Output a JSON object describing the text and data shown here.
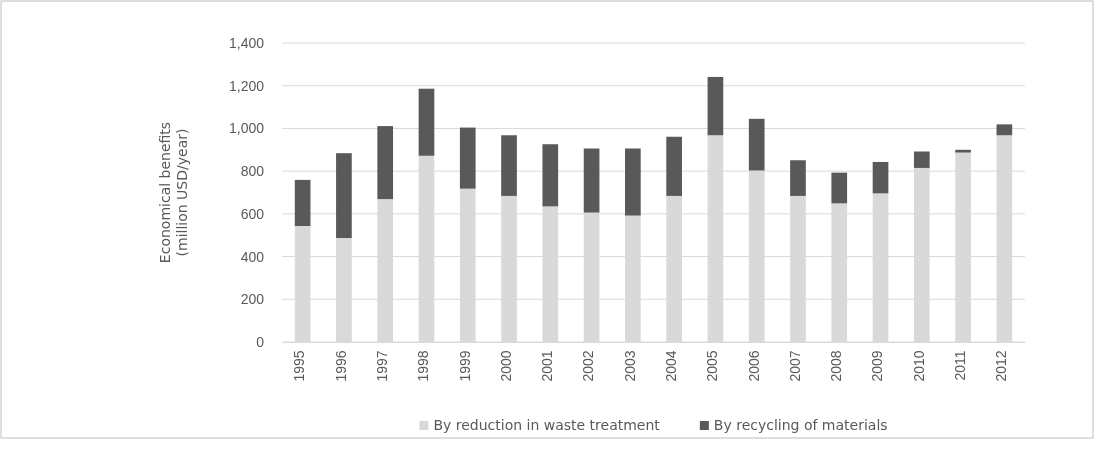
{
  "chart_data": {
    "type": "bar",
    "stacked": true,
    "ylabel": "Economical benefits\n(million USD/year)",
    "categories": [
      "1995",
      "1996",
      "1997",
      "1998",
      "1999",
      "2000",
      "2001",
      "2002",
      "2003",
      "2004",
      "2005",
      "2006",
      "2007",
      "2008",
      "2009",
      "2010",
      "2011",
      "2012"
    ],
    "series": [
      {
        "name": "By reduction in waste treatment",
        "color": "#d9d9d9",
        "values": [
          543,
          487,
          669,
          872,
          718,
          684,
          635,
          606,
          592,
          684,
          968,
          803,
          684,
          649,
          696,
          815,
          887,
          968
        ]
      },
      {
        "name": "By recycling of materials",
        "color": "#595959",
        "values": [
          216,
          397,
          342,
          314,
          286,
          284,
          291,
          300,
          314,
          277,
          273,
          242,
          167,
          144,
          147,
          77,
          13,
          51
        ]
      }
    ],
    "ylim": [
      0,
      1400
    ],
    "yticks": [
      {
        "value": 0,
        "label": "0"
      },
      {
        "value": 200,
        "label": "200"
      },
      {
        "value": 400,
        "label": "400"
      },
      {
        "value": 600,
        "label": "600"
      },
      {
        "value": 800,
        "label": "800"
      },
      {
        "value": 1000,
        "label": "1,000"
      },
      {
        "value": 1200,
        "label": "1,200"
      },
      {
        "value": 1400,
        "label": "1,400"
      }
    ],
    "grid": "y",
    "legend": "bottom"
  }
}
